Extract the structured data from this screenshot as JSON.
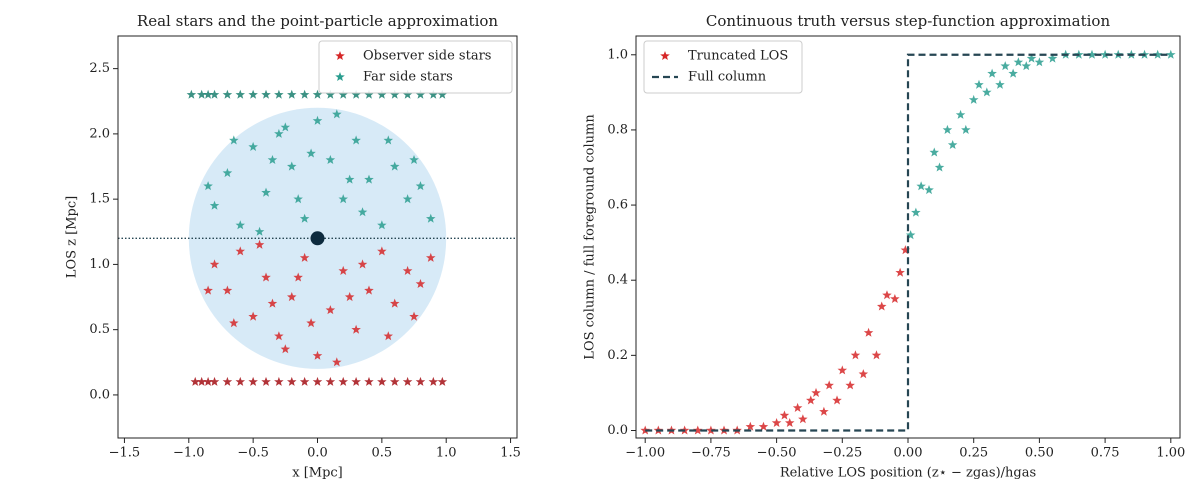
{
  "chart_data": [
    {
      "type": "scatter",
      "title": "Real stars and the point-particle approximation",
      "xlabel": "x [Mpc]",
      "ylabel": "LOS z [Mpc]",
      "xlim": [
        -1.55,
        1.55
      ],
      "ylim": [
        -0.33,
        2.75
      ],
      "xticks": [
        {
          "value": -1.5,
          "label": "−1.5"
        },
        {
          "value": -1,
          "label": "−1.0"
        },
        {
          "value": -0.5,
          "label": "−0.5"
        },
        {
          "value": 0,
          "label": "0.0"
        },
        0.5,
        {
          "value": 1,
          "label": "1.0"
        },
        1.5
      ],
      "yticks": [
        {
          "value": 0,
          "label": "0.0"
        },
        0.5,
        {
          "value": 1,
          "label": "1.0"
        },
        1.5,
        {
          "value": 2,
          "label": "2.0"
        },
        2.5
      ],
      "legend": "upper right",
      "sphere": {
        "center": [
          0,
          1.2
        ],
        "radius": 1,
        "color": "#c9e3f4"
      },
      "hline": 1.2,
      "center_marker": {
        "x": 0,
        "y": 1.2,
        "color": "#0d2b3e"
      },
      "series": [
        {
          "name": "Observer side stars",
          "color": "#d62728",
          "x": [
            -0.8,
            -0.7,
            -0.6,
            -0.5,
            -0.4,
            -0.3,
            -0.2,
            -0.1,
            0.0,
            0.1,
            0.2,
            0.3,
            0.4,
            0.5,
            0.6,
            0.7,
            0.8,
            -0.65,
            -0.45,
            -0.25,
            -0.05,
            0.15,
            0.35,
            0.55,
            0.75,
            -0.85,
            0.88,
            -0.15,
            0.25,
            -0.35
          ],
          "values": [
            1.0,
            0.8,
            1.1,
            0.6,
            0.9,
            0.45,
            0.75,
            1.05,
            0.3,
            0.65,
            0.95,
            0.5,
            0.8,
            1.1,
            0.7,
            0.95,
            0.85,
            0.55,
            1.15,
            0.35,
            0.55,
            0.25,
            1.0,
            0.45,
            0.6,
            0.8,
            1.05,
            0.9,
            0.75,
            0.7
          ]
        },
        {
          "name": "Far side stars",
          "color": "#2a9d8f",
          "x": [
            -0.8,
            -0.7,
            -0.6,
            -0.5,
            -0.4,
            -0.3,
            -0.2,
            -0.1,
            0.0,
            0.1,
            0.2,
            0.3,
            0.4,
            0.5,
            0.6,
            0.7,
            0.8,
            -0.65,
            -0.45,
            -0.25,
            -0.05,
            0.15,
            0.35,
            0.55,
            0.75,
            -0.85,
            0.88,
            -0.15,
            0.25,
            -0.35
          ],
          "values": [
            1.45,
            1.7,
            1.3,
            1.9,
            1.55,
            2.0,
            1.75,
            1.35,
            2.1,
            1.8,
            1.5,
            1.95,
            1.65,
            1.3,
            1.75,
            1.5,
            1.6,
            1.95,
            1.25,
            2.05,
            1.85,
            2.15,
            1.4,
            1.95,
            1.8,
            1.6,
            1.35,
            1.5,
            1.65,
            1.8
          ]
        },
        {
          "color": "#a50f15",
          "x": [
            -0.95,
            -0.9,
            -0.85,
            -0.8,
            -0.7,
            -0.6,
            -0.5,
            -0.4,
            -0.3,
            -0.2,
            -0.1,
            0.0,
            0.1,
            0.2,
            0.3,
            0.4,
            0.5,
            0.6,
            0.7,
            0.8,
            0.9,
            0.97
          ],
          "values": [
            0.1,
            0.1,
            0.1,
            0.1,
            0.1,
            0.1,
            0.1,
            0.1,
            0.1,
            0.1,
            0.1,
            0.1,
            0.1,
            0.1,
            0.1,
            0.1,
            0.1,
            0.1,
            0.1,
            0.1,
            0.1,
            0.1
          ]
        },
        {
          "color": "#1a7f6e",
          "x": [
            -0.98,
            -0.9,
            -0.85,
            -0.8,
            -0.7,
            -0.6,
            -0.5,
            -0.4,
            -0.3,
            -0.2,
            -0.1,
            0.0,
            0.1,
            0.2,
            0.3,
            0.4,
            0.5,
            0.6,
            0.7,
            0.8,
            0.9,
            0.97
          ],
          "values": [
            2.3,
            2.3,
            2.3,
            2.3,
            2.3,
            2.3,
            2.3,
            2.3,
            2.3,
            2.3,
            2.3,
            2.3,
            2.3,
            2.3,
            2.3,
            2.3,
            2.3,
            2.3,
            2.3,
            2.3,
            2.3,
            2.3
          ]
        }
      ]
    },
    {
      "type": "scatter",
      "title": "Continuous truth versus step-function approximation",
      "xlabel": "Relative LOS position (z⋆ − zgas)/hgas",
      "ylabel": "LOS column / full foreground column",
      "xlim": [
        -1.035,
        1.035
      ],
      "ylim": [
        -0.02,
        1.05
      ],
      "xticks": [
        {
          "value": -1,
          "label": "−1.00"
        },
        {
          "value": -0.75,
          "label": "−0.75"
        },
        {
          "value": -0.5,
          "label": "−0.50"
        },
        {
          "value": -0.25,
          "label": "−0.25"
        },
        {
          "value": 0,
          "label": "0.00"
        },
        0.25,
        {
          "value": 0.5,
          "label": "0.50"
        },
        0.75,
        {
          "value": 1,
          "label": "1.00"
        }
      ],
      "yticks": [
        {
          "value": 0,
          "label": "0.0"
        },
        0.2,
        0.4,
        0.6,
        0.8,
        {
          "value": 1,
          "label": "1.0"
        }
      ],
      "legend": "upper left",
      "series": [
        {
          "name": "Truncated LOS",
          "color": "#d62728",
          "x": [
            -1,
            -0.95,
            -0.9,
            -0.85,
            -0.8,
            -0.75,
            -0.7,
            -0.65,
            -0.6,
            -0.55,
            -0.5,
            -0.47,
            -0.45,
            -0.42,
            -0.4,
            -0.37,
            -0.35,
            -0.32,
            -0.3,
            -0.27,
            -0.25,
            -0.22,
            -0.2,
            -0.17,
            -0.15,
            -0.12,
            -0.1,
            -0.08,
            -0.05,
            -0.03,
            -0.01
          ],
          "values": [
            0,
            0,
            0,
            0,
            0,
            0,
            0,
            0,
            0.01,
            0.01,
            0.02,
            0.04,
            0.02,
            0.06,
            0.03,
            0.08,
            0.1,
            0.05,
            0.12,
            0.08,
            0.16,
            0.12,
            0.2,
            0.15,
            0.26,
            0.2,
            0.33,
            0.36,
            0.35,
            0.42,
            0.48
          ]
        },
        {
          "color": "#2a9d8f",
          "x": [
            0.01,
            0.03,
            0.05,
            0.08,
            0.1,
            0.12,
            0.15,
            0.17,
            0.2,
            0.22,
            0.25,
            0.27,
            0.3,
            0.32,
            0.35,
            0.37,
            0.4,
            0.42,
            0.45,
            0.47,
            0.5,
            0.55,
            0.6,
            0.65,
            0.7,
            0.75,
            0.8,
            0.85,
            0.9,
            0.95,
            1.0
          ],
          "values": [
            0.52,
            0.58,
            0.65,
            0.64,
            0.74,
            0.7,
            0.8,
            0.76,
            0.84,
            0.8,
            0.88,
            0.92,
            0.9,
            0.95,
            0.92,
            0.97,
            0.95,
            0.98,
            0.97,
            0.99,
            0.98,
            0.99,
            1,
            1,
            1,
            1,
            1,
            1,
            1,
            1,
            1
          ]
        },
        {
          "name": "Full column",
          "type": "line",
          "color": "#264653",
          "x": [
            -1,
            0,
            0,
            1
          ],
          "values": [
            0,
            0,
            1,
            1
          ]
        }
      ]
    }
  ]
}
